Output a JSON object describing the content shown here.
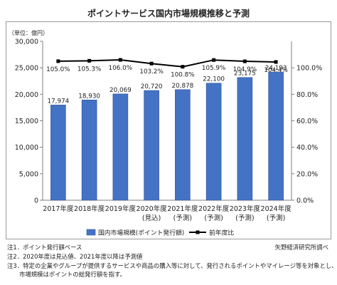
{
  "title": "ポイントサービス国内市場規模推移と予測",
  "unit_label": "（単位：億円）",
  "source": "矢野経済研究所調べ",
  "notes": [
    "注1．ポイント発行額ベース",
    "注2．2020年度は見込値、2021年度以降は予測値",
    "注3．特定の企業やグループが提供するサービスや商品の購入等に対して、発行されるポイントやマイレージ等を対象とし、",
    "市場規模はポイントの総発行額を指す。"
  ],
  "colors": {
    "bar": "#4472C4",
    "bar_edge": "#2F5597",
    "line": "#000000"
  },
  "chart_data": {
    "type": "bar",
    "categories": [
      "2017年度",
      "2018年度",
      "2019年度",
      "2020年度",
      "2021年度",
      "2022年度",
      "2023年度",
      "2024年度"
    ],
    "category_sublabels": [
      "",
      "",
      "",
      "(見込)",
      "(予測)",
      "(予測)",
      "(予測)",
      "(予測)"
    ],
    "series": [
      {
        "name": "国内市場規模(ポイント発行額)",
        "type": "bar",
        "axis": "left",
        "values": [
          17974,
          18930,
          20069,
          20720,
          20878,
          22100,
          23175,
          24193
        ],
        "value_labels": [
          "17,974",
          "18,930",
          "20,069",
          "20,720",
          "20,878",
          "22,100",
          "23,175",
          "24,193"
        ]
      },
      {
        "name": "前年度比",
        "type": "line",
        "axis": "right",
        "values": [
          105.0,
          105.3,
          106.0,
          103.2,
          100.8,
          105.9,
          104.9,
          104.4
        ],
        "value_labels": [
          "105.0%",
          "105.3%",
          "106.0%",
          "103.2%",
          "100.8%",
          "105.9%",
          "104.9%",
          "104.4%"
        ]
      }
    ],
    "ylim_left": [
      0,
      30000
    ],
    "yticks_left": [
      "0",
      "5,000",
      "10,000",
      "15,000",
      "20,000",
      "25,000",
      "30,000"
    ],
    "ylim_right": [
      0,
      120
    ],
    "yticks_right": [
      "0.0%",
      "20.0%",
      "40.0%",
      "60.0%",
      "80.0%",
      "100.0%"
    ],
    "legend_position": "bottom",
    "grid": false
  }
}
